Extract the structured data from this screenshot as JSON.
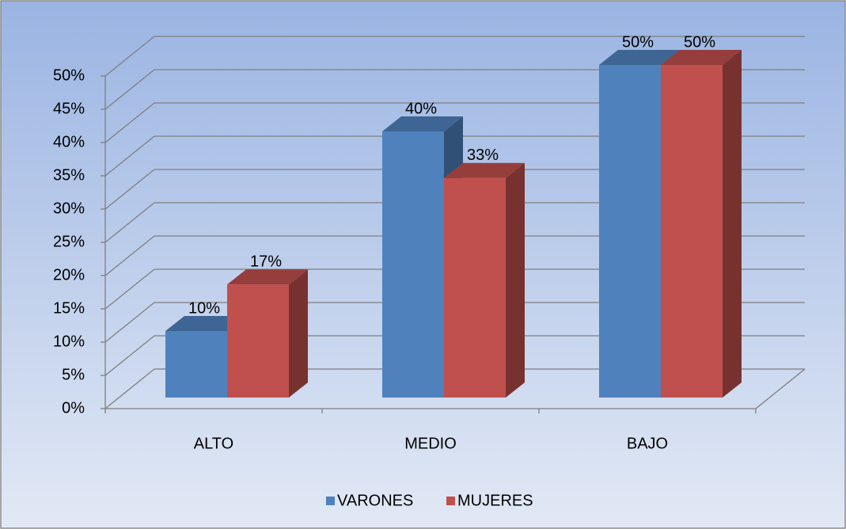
{
  "chart_data": {
    "type": "bar3d",
    "categories": [
      "ALTO",
      "MEDIO",
      "BAJO"
    ],
    "series": [
      {
        "name": "VARONES",
        "color": "#4f81bd",
        "values": [
          10,
          40,
          50
        ],
        "value_labels": [
          "10%",
          "40%",
          "50%"
        ]
      },
      {
        "name": "MUJERES",
        "color": "#c0504d",
        "values": [
          17,
          33,
          50
        ],
        "value_labels": [
          "17%",
          "33%",
          "50%"
        ]
      }
    ],
    "ylim": [
      0,
      50
    ],
    "yticks": [
      {
        "value": 0,
        "label": "0%"
      },
      {
        "value": 5,
        "label": "5%"
      },
      {
        "value": 10,
        "label": "10%"
      },
      {
        "value": 15,
        "label": "15%"
      },
      {
        "value": 20,
        "label": "20%"
      },
      {
        "value": 25,
        "label": "25%"
      },
      {
        "value": 30,
        "label": "30%"
      },
      {
        "value": 35,
        "label": "35%"
      },
      {
        "value": 40,
        "label": "40%"
      },
      {
        "value": 45,
        "label": "45%"
      },
      {
        "value": 50,
        "label": "50%"
      }
    ],
    "grid": true,
    "legend": "bottom"
  }
}
